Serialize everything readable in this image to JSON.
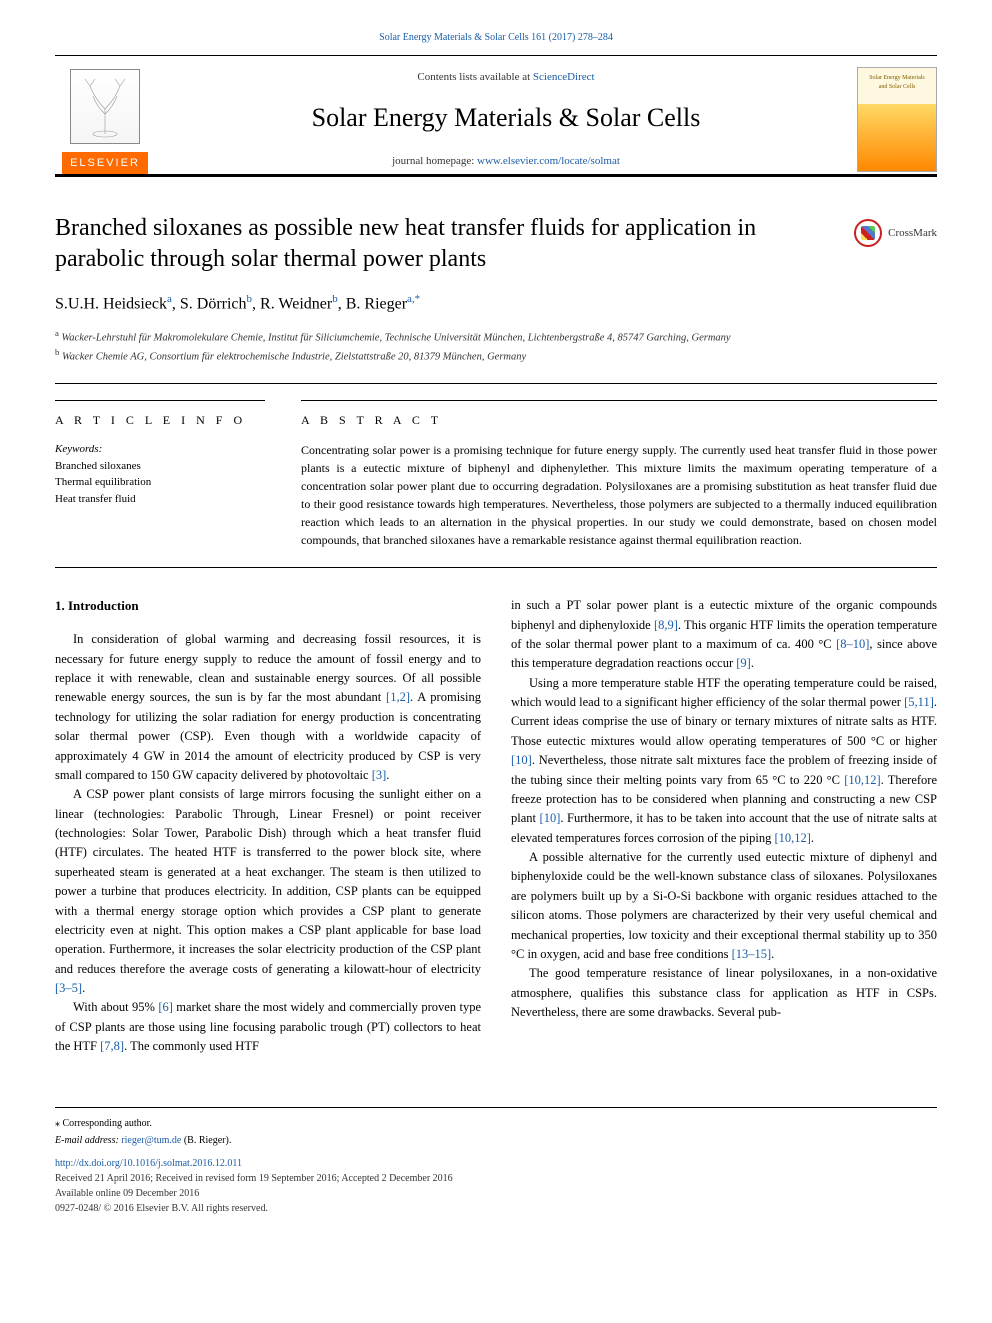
{
  "citation": "Solar Energy Materials & Solar Cells 161 (2017) 278–284",
  "header": {
    "contents_prefix": "Contents lists available at ",
    "contents_link": "ScienceDirect",
    "journal_name": "Solar Energy Materials & Solar Cells",
    "homepage_prefix": "journal homepage: ",
    "homepage_url": "www.elsevier.com/locate/solmat",
    "elsevier_label": "ELSEVIER",
    "cover_line1": "Solar Energy Materials",
    "cover_line2": "and Solar Cells"
  },
  "crossmark": "CrossMark",
  "title": "Branched siloxanes as possible new heat transfer fluids for application in parabolic through solar thermal power plants",
  "authors_html": "S.U.H. Heidsieck<sup>a</sup>, S. Dörrich<sup>b</sup>, R. Weidner<sup>b</sup>, B. Rieger<sup>a,*</sup>",
  "affiliations": [
    {
      "sup": "a",
      "text": "Wacker-Lehrstuhl für Makromolekulare Chemie, Institut für Siliciumchemie, Technische Universität München, Lichtenbergstraße 4, 85747 Garching, Germany"
    },
    {
      "sup": "b",
      "text": "Wacker Chemie AG, Consortium für elektrochemische Industrie, Zielstattstraße 20, 81379 München, Germany"
    }
  ],
  "info": {
    "heading": "A R T I C L E  I N F O",
    "keywords_label": "Keywords:",
    "keywords": [
      "Branched siloxanes",
      "Thermal equilibration",
      "Heat transfer fluid"
    ]
  },
  "abstract": {
    "heading": "A B S T R A C T",
    "text": "Concentrating solar power is a promising technique for future energy supply. The currently used heat transfer fluid in those power plants is a eutectic mixture of biphenyl and diphenylether. This mixture limits the maximum operating temperature of a concentration solar power plant due to occurring degradation. Polysiloxanes are a promising substitution as heat transfer fluid due to their good resistance towards high temperatures. Nevertheless, those polymers are subjected to a thermally induced equilibration reaction which leads to an alternation in the physical properties. In our study we could demonstrate, based on chosen model compounds, that branched siloxanes have a remarkable resistance against thermal equilibration reaction."
  },
  "section1_heading": "1. Introduction",
  "col1": {
    "p1": "In consideration of global warming and decreasing fossil resources, it is necessary for future energy supply to reduce the amount of fossil energy and to replace it with renewable, clean and sustainable energy sources. Of all possible renewable energy sources, the sun is by far the most abundant <span class=\"ref\">[1,2]</span>. A promising technology for utilizing the solar radiation for energy production is concentrating solar thermal power (CSP). Even though with a worldwide capacity of approximately 4 GW in 2014 the amount of electricity produced by CSP is very small compared to 150 GW capacity delivered by photovoltaic <span class=\"ref\">[3]</span>.",
    "p2": "A CSP power plant consists of large mirrors focusing the sunlight either on a linear (technologies: Parabolic Through, Linear Fresnel) or point receiver (technologies: Solar Tower, Parabolic Dish) through which a heat transfer fluid (HTF) circulates. The heated HTF is transferred to the power block site, where superheated steam is generated at a heat exchanger. The steam is then utilized to power a turbine that produces electricity. In addition, CSP plants can be equipped with a thermal energy storage option which provides a CSP plant to generate electricity even at night. This option makes a CSP plant applicable for base load operation. Furthermore, it increases the solar electricity production of the CSP plant and reduces therefore the average costs of generating a kilowatt-hour of electricity <span class=\"ref\">[3–5]</span>.",
    "p3": "With about 95% <span class=\"ref\">[6]</span> market share the most widely and commercially proven type of CSP plants are those using line focusing parabolic trough (PT) collectors to heat the HTF <span class=\"ref\">[7,8]</span>. The commonly used HTF"
  },
  "col2": {
    "p1": "in such a PT solar power plant is a eutectic mixture of the organic compounds biphenyl and diphenyloxide <span class=\"ref\">[8,9]</span>. This organic HTF limits the operation temperature of the solar thermal power plant to a maximum of ca. 400 °C <span class=\"ref\">[8–10]</span>, since above this temperature degradation reactions occur <span class=\"ref\">[9]</span>.",
    "p2": "Using a more temperature stable HTF the operating temperature could be raised, which would lead to a significant higher efficiency of the solar thermal power <span class=\"ref\">[5,11]</span>. Current ideas comprise the use of binary or ternary mixtures of nitrate salts as HTF. Those eutectic mixtures would allow operating temperatures of 500 °C or higher <span class=\"ref\">[10]</span>. Nevertheless, those nitrate salt mixtures face the problem of freezing inside of the tubing since their melting points vary from 65 °C to 220 °C <span class=\"ref\">[10,12]</span>. Therefore freeze protection has to be considered when planning and constructing a new CSP plant <span class=\"ref\">[10]</span>. Furthermore, it has to be taken into account that the use of nitrate salts at elevated temperatures forces corrosion of the piping <span class=\"ref\">[10,12]</span>.",
    "p3": "A possible alternative for the currently used eutectic mixture of diphenyl and biphenyloxide could be the well-known substance class of siloxanes. Polysiloxanes are polymers built up by a Si-O-Si backbone with organic residues attached to the silicon atoms. Those polymers are characterized by their very useful chemical and mechanical properties, low toxicity and their exceptional thermal stability up to 350 °C in oxygen, acid and base free conditions <span class=\"ref\">[13–15]</span>.",
    "p4": "The good temperature resistance of linear polysiloxanes, in a non-oxidative atmosphere, qualifies this substance class for application as HTF in CSPs. Nevertheless, there are some drawbacks. Several pub-"
  },
  "footer": {
    "corr": "⁎ Corresponding author.",
    "email_label": "E-mail address: ",
    "email": "rieger@tum.de",
    "email_suffix": " (B. Rieger).",
    "doi": "http://dx.doi.org/10.1016/j.solmat.2016.12.011",
    "dates": "Received 21 April 2016; Received in revised form 19 September 2016; Accepted 2 December 2016",
    "avail": "Available online 09 December 2016",
    "copyright": "0927-0248/ © 2016 Elsevier B.V. All rights reserved."
  },
  "colors": {
    "link": "#1a5da8",
    "elsevier_orange": "#ff6b00",
    "crossmark_red": "#c92020"
  }
}
